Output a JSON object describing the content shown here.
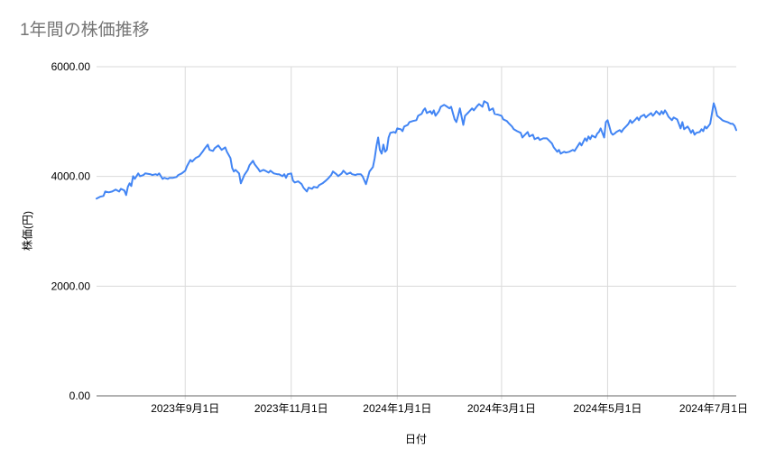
{
  "page": {
    "background": "#ffffff"
  },
  "chart": {
    "title": "1年間の株価推移",
    "title_color": "#757575",
    "xlabel": "日付",
    "ylabel": "株価(円)",
    "line_color": "#4285f4",
    "grid_color": "#dadada",
    "baseline_color": "#666666",
    "label_color": "#000000"
  },
  "chart_data": {
    "type": "line",
    "title": "1年間の株価推移",
    "xlabel": "日付",
    "ylabel": "株価(円)",
    "ylim": [
      0,
      6000
    ],
    "grid": true,
    "legend": "none",
    "y_ticks": [
      {
        "label": "0.00",
        "value": 0
      },
      {
        "label": "2000.00",
        "value": 2000
      },
      {
        "label": "4000.00",
        "value": 4000
      },
      {
        "label": "6000.00",
        "value": 6000
      }
    ],
    "x_unit": "days since 2023-07-12",
    "x_start_date": "2023-07-12",
    "x_end_date": "2024-07-14",
    "x_domain": [
      0,
      368
    ],
    "x_ticks": [
      {
        "label": "2023年9月1日",
        "day": 51
      },
      {
        "label": "2023年11月1日",
        "day": 112
      },
      {
        "label": "2024年1月1日",
        "day": 173
      },
      {
        "label": "2024年3月1日",
        "day": 233
      },
      {
        "label": "2024年5月1日",
        "day": 294
      },
      {
        "label": "2024年7月1日",
        "day": 355
      }
    ],
    "series": [
      {
        "name": "株価",
        "color": "#4285f4",
        "points": [
          [
            0,
            3595
          ],
          [
            2,
            3630
          ],
          [
            4,
            3645
          ],
          [
            5,
            3725
          ],
          [
            7,
            3710
          ],
          [
            9,
            3725
          ],
          [
            11,
            3760
          ],
          [
            13,
            3725
          ],
          [
            14,
            3775
          ],
          [
            16,
            3745
          ],
          [
            17,
            3660
          ],
          [
            18,
            3810
          ],
          [
            19,
            3875
          ],
          [
            20,
            3825
          ],
          [
            21,
            4005
          ],
          [
            22,
            3955
          ],
          [
            24,
            4055
          ],
          [
            25,
            4005
          ],
          [
            27,
            4025
          ],
          [
            28,
            4055
          ],
          [
            31,
            4040
          ],
          [
            32,
            4025
          ],
          [
            34,
            4040
          ],
          [
            35,
            4025
          ],
          [
            36,
            4055
          ],
          [
            38,
            3955
          ],
          [
            39,
            3975
          ],
          [
            41,
            3955
          ],
          [
            42,
            3975
          ],
          [
            44,
            3975
          ],
          [
            46,
            3990
          ],
          [
            47,
            4025
          ],
          [
            49,
            4055
          ],
          [
            51,
            4105
          ],
          [
            52,
            4185
          ],
          [
            54,
            4300
          ],
          [
            55,
            4270
          ],
          [
            57,
            4335
          ],
          [
            59,
            4370
          ],
          [
            61,
            4450
          ],
          [
            62,
            4500
          ],
          [
            64,
            4580
          ],
          [
            65,
            4485
          ],
          [
            67,
            4465
          ],
          [
            68,
            4515
          ],
          [
            70,
            4565
          ],
          [
            72,
            4485
          ],
          [
            74,
            4530
          ],
          [
            75,
            4450
          ],
          [
            77,
            4335
          ],
          [
            78,
            4155
          ],
          [
            79,
            4090
          ],
          [
            80,
            4120
          ],
          [
            82,
            4055
          ],
          [
            83,
            3875
          ],
          [
            85,
            4025
          ],
          [
            87,
            4120
          ],
          [
            88,
            4205
          ],
          [
            90,
            4285
          ],
          [
            91,
            4220
          ],
          [
            93,
            4140
          ],
          [
            94,
            4090
          ],
          [
            96,
            4120
          ],
          [
            97,
            4105
          ],
          [
            99,
            4070
          ],
          [
            100,
            4105
          ],
          [
            102,
            4055
          ],
          [
            104,
            4040
          ],
          [
            105,
            4040
          ],
          [
            107,
            4005
          ],
          [
            108,
            4040
          ],
          [
            109,
            3975
          ],
          [
            110,
            4040
          ],
          [
            112,
            4055
          ],
          [
            113,
            3925
          ],
          [
            114,
            3890
          ],
          [
            116,
            3910
          ],
          [
            118,
            3860
          ],
          [
            119,
            3795
          ],
          [
            121,
            3725
          ],
          [
            122,
            3795
          ],
          [
            124,
            3775
          ],
          [
            125,
            3810
          ],
          [
            127,
            3795
          ],
          [
            128,
            3840
          ],
          [
            130,
            3875
          ],
          [
            132,
            3925
          ],
          [
            133,
            3955
          ],
          [
            135,
            4025
          ],
          [
            136,
            4090
          ],
          [
            138,
            4040
          ],
          [
            139,
            4005
          ],
          [
            141,
            4055
          ],
          [
            142,
            4105
          ],
          [
            144,
            4040
          ],
          [
            146,
            4070
          ],
          [
            147,
            4040
          ],
          [
            149,
            4025
          ],
          [
            150,
            4040
          ],
          [
            152,
            4040
          ],
          [
            153,
            4005
          ],
          [
            155,
            3860
          ],
          [
            156,
            3975
          ],
          [
            157,
            4090
          ],
          [
            159,
            4170
          ],
          [
            160,
            4335
          ],
          [
            161,
            4550
          ],
          [
            162,
            4710
          ],
          [
            163,
            4485
          ],
          [
            164,
            4415
          ],
          [
            165,
            4580
          ],
          [
            166,
            4450
          ],
          [
            167,
            4485
          ],
          [
            168,
            4710
          ],
          [
            169,
            4795
          ],
          [
            171,
            4810
          ],
          [
            172,
            4795
          ],
          [
            173,
            4875
          ],
          [
            175,
            4860
          ],
          [
            176,
            4825
          ],
          [
            177,
            4910
          ],
          [
            179,
            4940
          ],
          [
            180,
            4990
          ],
          [
            182,
            5010
          ],
          [
            184,
            5025
          ],
          [
            185,
            5105
          ],
          [
            187,
            5140
          ],
          [
            188,
            5205
          ],
          [
            189,
            5240
          ],
          [
            190,
            5155
          ],
          [
            192,
            5190
          ],
          [
            193,
            5140
          ],
          [
            194,
            5205
          ],
          [
            195,
            5105
          ],
          [
            197,
            5190
          ],
          [
            198,
            5270
          ],
          [
            200,
            5305
          ],
          [
            201,
            5285
          ],
          [
            203,
            5240
          ],
          [
            204,
            5270
          ],
          [
            206,
            5040
          ],
          [
            207,
            4990
          ],
          [
            208,
            5105
          ],
          [
            209,
            5240
          ],
          [
            211,
            4940
          ],
          [
            212,
            5105
          ],
          [
            214,
            5170
          ],
          [
            216,
            5240
          ],
          [
            217,
            5205
          ],
          [
            219,
            5285
          ],
          [
            220,
            5320
          ],
          [
            222,
            5270
          ],
          [
            223,
            5370
          ],
          [
            225,
            5335
          ],
          [
            226,
            5205
          ],
          [
            228,
            5240
          ],
          [
            229,
            5140
          ],
          [
            231,
            5125
          ],
          [
            233,
            5105
          ],
          [
            234,
            5040
          ],
          [
            236,
            5010
          ],
          [
            237,
            4975
          ],
          [
            239,
            4910
          ],
          [
            240,
            4860
          ],
          [
            242,
            4825
          ],
          [
            244,
            4795
          ],
          [
            245,
            4710
          ],
          [
            246,
            4745
          ],
          [
            248,
            4810
          ],
          [
            249,
            4730
          ],
          [
            251,
            4760
          ],
          [
            252,
            4680
          ],
          [
            254,
            4710
          ],
          [
            255,
            4665
          ],
          [
            257,
            4695
          ],
          [
            259,
            4695
          ],
          [
            260,
            4665
          ],
          [
            262,
            4600
          ],
          [
            263,
            4530
          ],
          [
            265,
            4450
          ],
          [
            266,
            4485
          ],
          [
            267,
            4415
          ],
          [
            269,
            4450
          ],
          [
            270,
            4435
          ],
          [
            272,
            4450
          ],
          [
            274,
            4485
          ],
          [
            275,
            4465
          ],
          [
            277,
            4565
          ],
          [
            278,
            4615
          ],
          [
            279,
            4565
          ],
          [
            280,
            4630
          ],
          [
            281,
            4695
          ],
          [
            282,
            4645
          ],
          [
            283,
            4730
          ],
          [
            284,
            4680
          ],
          [
            285,
            4745
          ],
          [
            287,
            4710
          ],
          [
            288,
            4780
          ],
          [
            289,
            4810
          ],
          [
            290,
            4875
          ],
          [
            291,
            4795
          ],
          [
            292,
            4710
          ],
          [
            293,
            4990
          ],
          [
            294,
            5025
          ],
          [
            295,
            4910
          ],
          [
            296,
            4795
          ],
          [
            297,
            4760
          ],
          [
            298,
            4780
          ],
          [
            299,
            4810
          ],
          [
            301,
            4845
          ],
          [
            302,
            4810
          ],
          [
            303,
            4860
          ],
          [
            305,
            4925
          ],
          [
            306,
            4960
          ],
          [
            307,
            5025
          ],
          [
            308,
            4975
          ],
          [
            310,
            5040
          ],
          [
            311,
            5075
          ],
          [
            312,
            5025
          ],
          [
            313,
            5090
          ],
          [
            315,
            5125
          ],
          [
            316,
            5075
          ],
          [
            317,
            5105
          ],
          [
            319,
            5155
          ],
          [
            320,
            5105
          ],
          [
            321,
            5140
          ],
          [
            322,
            5190
          ],
          [
            324,
            5125
          ],
          [
            325,
            5190
          ],
          [
            326,
            5140
          ],
          [
            327,
            5205
          ],
          [
            328,
            5155
          ],
          [
            329,
            5090
          ],
          [
            331,
            5025
          ],
          [
            332,
            5075
          ],
          [
            334,
            5040
          ],
          [
            335,
            4960
          ],
          [
            336,
            4875
          ],
          [
            337,
            4990
          ],
          [
            338,
            4860
          ],
          [
            340,
            4910
          ],
          [
            341,
            4860
          ],
          [
            342,
            4795
          ],
          [
            343,
            4845
          ],
          [
            344,
            4760
          ],
          [
            345,
            4795
          ],
          [
            347,
            4810
          ],
          [
            348,
            4860
          ],
          [
            349,
            4825
          ],
          [
            350,
            4910
          ],
          [
            351,
            4875
          ],
          [
            353,
            4960
          ],
          [
            354,
            5140
          ],
          [
            355,
            5335
          ],
          [
            356,
            5240
          ],
          [
            357,
            5105
          ],
          [
            359,
            5055
          ],
          [
            360,
            5025
          ],
          [
            361,
            5010
          ],
          [
            363,
            4990
          ],
          [
            364,
            4975
          ],
          [
            365,
            4960
          ],
          [
            366,
            4960
          ],
          [
            367,
            4925
          ],
          [
            368,
            4845
          ]
        ]
      }
    ]
  }
}
